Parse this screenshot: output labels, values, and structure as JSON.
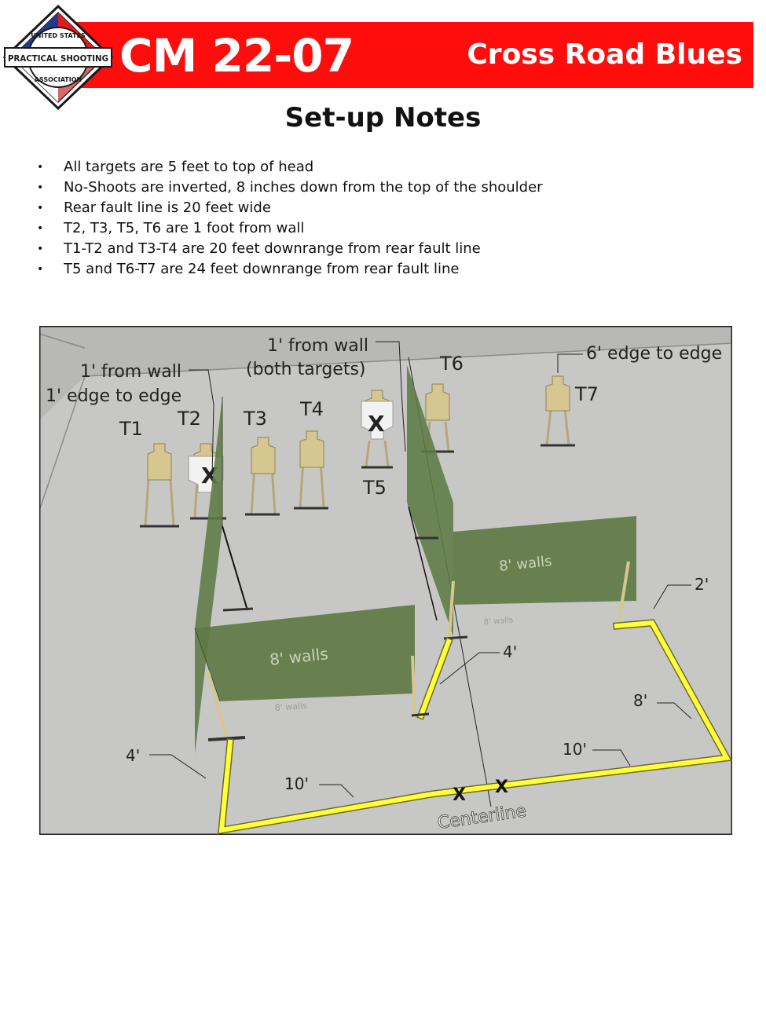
{
  "header": {
    "logo_text_top": "UNITED STATES",
    "logo_text_mid": "PRACTICAL SHOOTING",
    "logo_text_bottom": "ASSOCIATION",
    "stage_code": "CM 22-07",
    "stage_name": "Cross Road Blues",
    "banner_color": "#ff0d0d"
  },
  "notes": {
    "title": "Set-up Notes",
    "items": [
      "All targets are 5 feet to top of head",
      "No-Shoots are inverted, 8 inches down from the top of the shoulder",
      "Rear fault line is 20 feet wide",
      "T2, T3, T5, T6 are 1 foot from wall",
      "T1-T2 and T3-T4 are 20 feet downrange from rear fault line",
      "T5 and T6-T7 are 24 feet downrange from rear fault line"
    ]
  },
  "diagram": {
    "targets": [
      "T1",
      "T2",
      "T3",
      "T4",
      "T5",
      "T6",
      "T7"
    ],
    "callouts": {
      "left_from_wall": "1' from wall",
      "left_edge": "1' edge to edge",
      "mid_from_wall": "1' from wall",
      "mid_both": "(both targets)",
      "right_edge": "6' edge to edge"
    },
    "wall_label": "8' walls",
    "wall_shadow_label": "8' walls",
    "dims": {
      "left_side": "4'",
      "left_bottom": "10'",
      "center_wing": "4'",
      "right_bottom": "10'",
      "right_side": "8'",
      "right_wing": "2'"
    },
    "cross_mark": "X",
    "centerline": "Centerline",
    "colors": {
      "floor": "#c7c8c6",
      "wall": "#5f7a45",
      "fault_line": "#ffff3a",
      "target": "#d6c690"
    }
  }
}
